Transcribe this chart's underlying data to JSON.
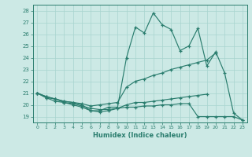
{
  "x": [
    0,
    1,
    2,
    3,
    4,
    5,
    6,
    7,
    8,
    9,
    10,
    11,
    12,
    13,
    14,
    15,
    16,
    17,
    18,
    19,
    20,
    21,
    22,
    23
  ],
  "line1": [
    21.0,
    20.7,
    20.5,
    20.3,
    20.2,
    20.0,
    19.5,
    19.5,
    19.8,
    19.8,
    24.0,
    26.6,
    26.1,
    27.8,
    26.8,
    26.4,
    24.6,
    25.0,
    26.5,
    23.3,
    24.5,
    22.7,
    19.3,
    18.7
  ],
  "line2": [
    21.0,
    20.7,
    20.5,
    20.3,
    20.2,
    20.1,
    19.9,
    20.0,
    20.1,
    20.2,
    21.5,
    22.0,
    22.2,
    22.5,
    22.7,
    23.0,
    23.2,
    23.4,
    23.6,
    23.8,
    24.4,
    null,
    null,
    null
  ],
  "line3": [
    21.0,
    20.6,
    20.5,
    20.2,
    20.0,
    19.8,
    19.5,
    19.4,
    19.5,
    19.7,
    20.0,
    20.2,
    20.2,
    20.3,
    20.4,
    20.5,
    20.6,
    20.7,
    20.8,
    20.9,
    null,
    null,
    null,
    null
  ],
  "line4": [
    21.0,
    20.6,
    20.3,
    20.2,
    20.1,
    19.9,
    19.7,
    19.6,
    19.6,
    19.7,
    19.8,
    19.8,
    19.9,
    19.9,
    20.0,
    20.0,
    20.1,
    20.1,
    19.0,
    19.0,
    19.0,
    19.0,
    19.0,
    18.7
  ],
  "color": "#2a7d6e",
  "bg_color": "#cce9e5",
  "grid_color": "#a8d4cf",
  "ylabel_values": [
    19,
    20,
    21,
    22,
    23,
    24,
    25,
    26,
    27,
    28
  ],
  "xlabel": "Humidex (Indice chaleur)",
  "ylim": [
    18.5,
    28.5
  ],
  "xlim": [
    -0.5,
    23.5
  ]
}
